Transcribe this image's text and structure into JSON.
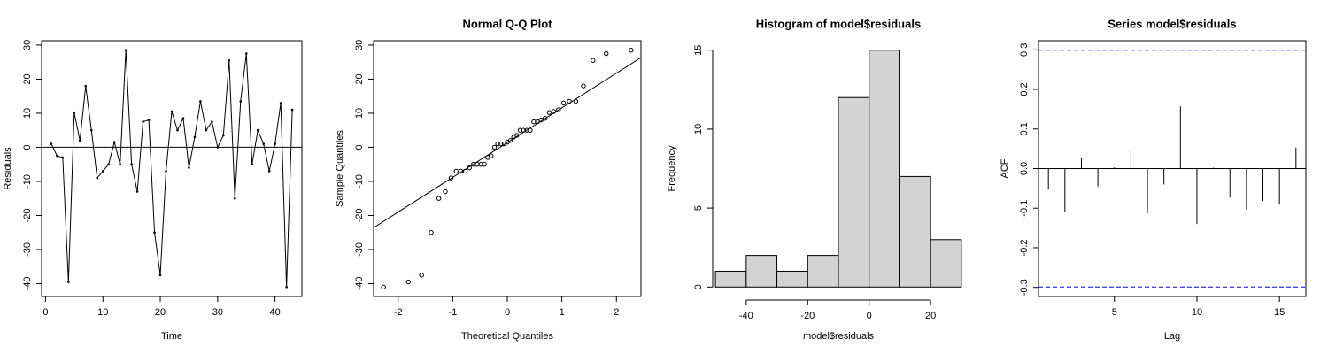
{
  "chart_data": [
    {
      "type": "line",
      "xlabel": "Time",
      "ylabel": "Residuals",
      "color": "#000000",
      "x": [
        1,
        2,
        3,
        4,
        5,
        6,
        7,
        8,
        9,
        10,
        11,
        12,
        13,
        14,
        15,
        16,
        17,
        18,
        19,
        20,
        21,
        22,
        23,
        24,
        25,
        26,
        27,
        28,
        29,
        30,
        31,
        32,
        33,
        34,
        35,
        36,
        37,
        38,
        39,
        40,
        41,
        42,
        43
      ],
      "values": [
        1,
        -2.5,
        -3,
        -39.5,
        10.2,
        2,
        18,
        5,
        -9,
        -7,
        -5,
        1.5,
        -5,
        28.5,
        -5,
        -13,
        7.5,
        8,
        -25,
        -37.5,
        -7,
        10.5,
        5,
        8.5,
        -6,
        3,
        13.5,
        5,
        7.5,
        0,
        3.5,
        25.5,
        -15,
        13.5,
        27.5,
        -5,
        5,
        1,
        -7,
        1,
        13,
        -41,
        11
      ],
      "hline": 0,
      "xlim": [
        -0.68,
        44.68
      ],
      "ylim": [
        -43.78,
        31.28
      ],
      "xticks": [
        0,
        10,
        20,
        30,
        40
      ],
      "yticks": [
        -40,
        -30,
        -20,
        -10,
        0,
        10,
        20,
        30
      ]
    },
    {
      "type": "scatter",
      "title": "Normal Q-Q Plot",
      "xlabel": "Theoretical Quantiles",
      "ylabel": "Sample Quantiles",
      "color": "#000000",
      "x": [
        -2.269,
        -1.813,
        -1.571,
        -1.395,
        -1.255,
        -1.136,
        -1.031,
        -0.937,
        -0.85,
        -0.769,
        -0.693,
        -0.62,
        -0.551,
        -0.485,
        -0.42,
        -0.357,
        -0.296,
        -0.235,
        -0.176,
        -0.117,
        -0.058,
        0,
        0.058,
        0.117,
        0.176,
        0.235,
        0.296,
        0.357,
        0.42,
        0.485,
        0.551,
        0.62,
        0.693,
        0.769,
        0.85,
        0.937,
        1.031,
        1.136,
        1.255,
        1.395,
        1.571,
        1.813,
        2.269
      ],
      "values": [
        -41,
        -39.5,
        -37.5,
        -25,
        -15,
        -13,
        -9,
        -7,
        -7,
        -7,
        -6,
        -5,
        -5,
        -5,
        -5,
        -3,
        -2.5,
        0,
        1,
        1,
        1,
        1.5,
        2,
        3,
        3.5,
        5,
        5,
        5,
        5,
        7.5,
        7.5,
        8,
        8.5,
        10.2,
        10.5,
        11,
        13,
        13.5,
        13.5,
        18,
        25.5,
        27.5,
        28.5
      ],
      "xlim": [
        -2.45,
        2.45
      ],
      "ylim": [
        -43.78,
        31.28
      ],
      "xticks": [
        -2,
        -1,
        0,
        1,
        2
      ],
      "yticks": [
        -40,
        -30,
        -20,
        -10,
        0,
        10,
        20,
        30
      ]
    },
    {
      "type": "histogram",
      "title": "Histogram of model$residuals",
      "xlabel": "model$residuals",
      "ylabel": "Frequency",
      "color": "#d3d3d3",
      "bins": [
        -50,
        -40,
        -30,
        -20,
        -10,
        0,
        10,
        20,
        30
      ],
      "values": [
        1,
        2,
        1,
        2,
        12,
        15,
        7,
        3
      ],
      "xlim": [
        -53.2,
        33.2
      ],
      "ylim": [
        -0.6,
        15.6
      ],
      "xticks": [
        -40,
        -20,
        0,
        20
      ],
      "yticks": [
        0,
        5,
        10,
        15
      ]
    },
    {
      "type": "acf",
      "title": "Series model$residuals",
      "xlabel": "Lag",
      "ylabel": "ACF",
      "color": "#000000",
      "ci_color": "#0000ff",
      "x": [
        1,
        2,
        3,
        4,
        5,
        6,
        7,
        8,
        9,
        10,
        11,
        12,
        13,
        14,
        15,
        16
      ],
      "values": [
        -0.053,
        -0.11,
        0.027,
        -0.045,
        0.003,
        0.045,
        -0.113,
        -0.04,
        0.157,
        -0.14,
        0.002,
        -0.073,
        -0.103,
        -0.082,
        -0.091,
        0.053
      ],
      "ci": 0.299,
      "hline": 0,
      "xlim": [
        0.4,
        16.6
      ],
      "ylim": [
        -0.323,
        0.323
      ],
      "xticks": [
        5,
        10,
        15
      ],
      "yticks": [
        -0.3,
        -0.2,
        -0.1,
        {
          "value": 0,
          "label": "0.0"
        },
        0.1,
        0.2,
        0.3
      ]
    }
  ]
}
